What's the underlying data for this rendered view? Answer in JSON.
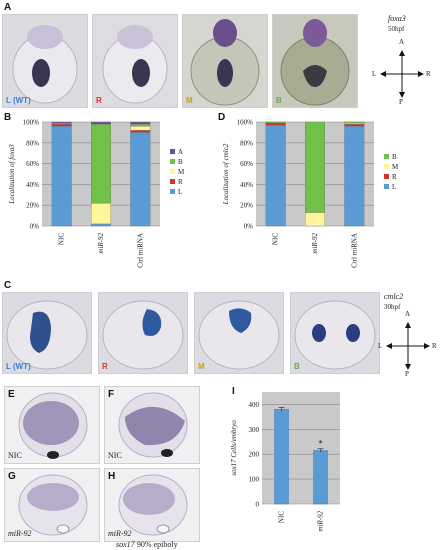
{
  "panelA": {
    "letter": "A",
    "gene": "foxa3",
    "stage": "50hpf",
    "photos": [
      {
        "label": "L (WT)",
        "color": "#3b82d6"
      },
      {
        "label": "R",
        "color": "#d23a2a"
      },
      {
        "label": "M",
        "color": "#c9a300"
      },
      {
        "label": "B",
        "color": "#6aa84f"
      }
    ],
    "compass": {
      "a": "A",
      "p": "P",
      "l": "L",
      "r": "R"
    }
  },
  "panelB": {
    "letter": "B"
  },
  "panelD": {
    "letter": "D"
  },
  "panelC": {
    "letter": "C",
    "gene": "cmlc2",
    "stage": "30hpf",
    "photos": [
      {
        "label": "L (WT)",
        "color": "#3b82d6"
      },
      {
        "label": "R",
        "color": "#d23a2a"
      },
      {
        "label": "M",
        "color": "#c9a300"
      },
      {
        "label": "B",
        "color": "#6aa84f"
      }
    ],
    "compass": {
      "a": "A",
      "p": "P",
      "l": "L",
      "r": "R"
    }
  },
  "panelsEH": {
    "photos": [
      {
        "letter": "E",
        "label": "NIC"
      },
      {
        "letter": "F",
        "label": "NIC"
      },
      {
        "letter": "G",
        "label": "miR-92"
      },
      {
        "letter": "H",
        "label": "miR-92"
      }
    ],
    "caption_gene": "sox17",
    "caption_stage": "90% epiboly"
  },
  "panelI": {
    "letter": "I"
  },
  "chart_data": [
    {
      "id": "B",
      "type": "bar",
      "stacked": true,
      "ylabel": "Localization of foxa3",
      "ytick_labels": [
        "0%",
        "20%",
        "40%",
        "60%",
        "80%",
        "100%"
      ],
      "ylim": [
        0,
        100
      ],
      "categories": [
        "NIC",
        "miR-92",
        "Ctrl miRNA"
      ],
      "series": [
        {
          "name": "L",
          "color": "#5b9bd5",
          "values": [
            96,
            2,
            90
          ]
        },
        {
          "name": "R",
          "color": "#d9302c",
          "values": [
            2,
            0,
            2
          ]
        },
        {
          "name": "M",
          "color": "#fff59a",
          "values": [
            0,
            20,
            4
          ]
        },
        {
          "name": "B",
          "color": "#70c04a",
          "values": [
            1,
            76,
            2
          ]
        },
        {
          "name": "A",
          "color": "#6a4fa0",
          "values": [
            1,
            2,
            2
          ]
        }
      ],
      "legend": [
        "A",
        "B",
        "M",
        "R",
        "L"
      ],
      "legend_placement": "right",
      "grid": true
    },
    {
      "id": "D",
      "type": "bar",
      "stacked": true,
      "ylabel": "Localization of cmlc2",
      "ytick_labels": [
        "0%",
        "20%",
        "40%",
        "60%",
        "80%",
        "100%"
      ],
      "ylim": [
        0,
        100
      ],
      "categories": [
        "NIC",
        "miR-92",
        "Ctrl miRNA"
      ],
      "series": [
        {
          "name": "L",
          "color": "#5b9bd5",
          "values": [
            97,
            0,
            96
          ]
        },
        {
          "name": "R",
          "color": "#d9302c",
          "values": [
            2,
            0,
            2
          ]
        },
        {
          "name": "M",
          "color": "#fff59a",
          "values": [
            0,
            13,
            1
          ]
        },
        {
          "name": "B",
          "color": "#70c04a",
          "values": [
            1,
            87,
            1
          ]
        }
      ],
      "legend": [
        "B",
        "M",
        "R",
        "L"
      ],
      "legend_placement": "right",
      "grid": true
    },
    {
      "id": "I",
      "type": "bar",
      "ylabel": "sox17 Cells/embryo",
      "ytick_labels": [
        "0",
        "100",
        "200",
        "300",
        "400"
      ],
      "ylim": [
        0,
        450
      ],
      "categories": [
        "NIC",
        "miR-92"
      ],
      "values": [
        380,
        215
      ],
      "errors": [
        8,
        7
      ],
      "annotations": [
        "",
        "*"
      ],
      "bar_color": "#5b9bd5",
      "grid": true
    }
  ]
}
